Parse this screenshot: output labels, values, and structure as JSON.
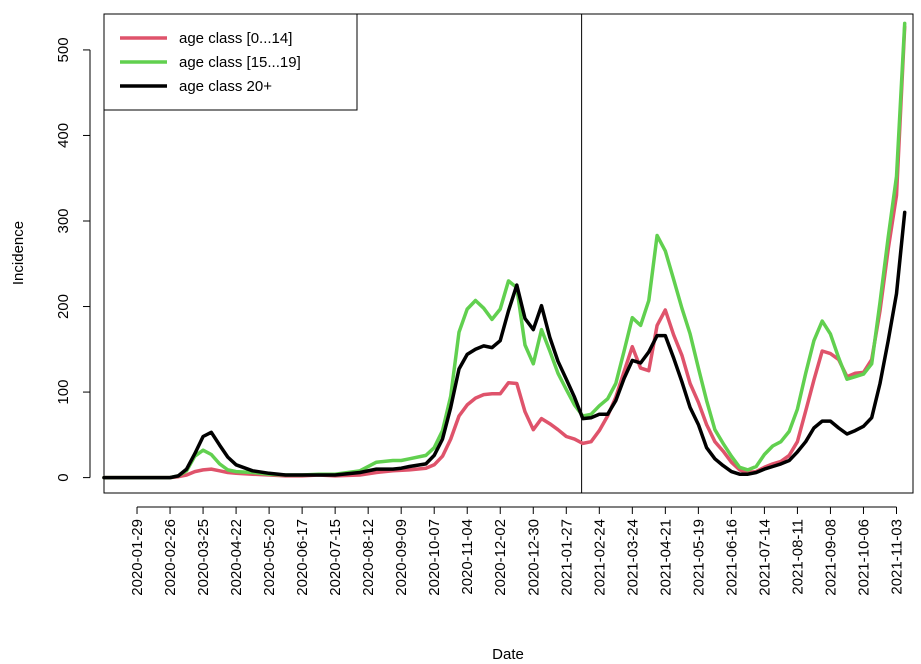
{
  "chart_data": {
    "type": "line",
    "title": "",
    "xlabel": "Date",
    "ylabel": "Incidence",
    "ylim": [
      -18,
      542
    ],
    "y_ticks": [
      0,
      100,
      200,
      300,
      400,
      500
    ],
    "x_start": "2020-01-01",
    "x_end": "2021-11-17",
    "x_tick_labels": [
      "2020-01-29",
      "2020-02-26",
      "2020-03-25",
      "2020-04-22",
      "2020-05-20",
      "2020-06-17",
      "2020-07-15",
      "2020-08-12",
      "2020-09-09",
      "2020-10-07",
      "2020-11-04",
      "2020-12-02",
      "2020-12-30",
      "2021-01-27",
      "2021-02-24",
      "2021-03-24",
      "2021-04-21",
      "2021-05-19",
      "2021-06-16",
      "2021-07-14",
      "2021-08-11",
      "2021-09-08",
      "2021-10-06",
      "2021-11-03"
    ],
    "vline_date": "2021-02-09",
    "grid": false,
    "legend_position": "top-left",
    "series": [
      {
        "name": "age class [0...14]",
        "color": "#DF536B",
        "points": [
          [
            "2020-01-01",
            0
          ],
          [
            "2020-01-15",
            0
          ],
          [
            "2020-02-05",
            0
          ],
          [
            "2020-02-26",
            0
          ],
          [
            "2020-03-04",
            1
          ],
          [
            "2020-03-11",
            3
          ],
          [
            "2020-03-18",
            7
          ],
          [
            "2020-03-25",
            9
          ],
          [
            "2020-04-01",
            10
          ],
          [
            "2020-04-08",
            8
          ],
          [
            "2020-04-15",
            6
          ],
          [
            "2020-04-22",
            5
          ],
          [
            "2020-05-06",
            4
          ],
          [
            "2020-05-20",
            3
          ],
          [
            "2020-06-03",
            2
          ],
          [
            "2020-06-17",
            2
          ],
          [
            "2020-07-01",
            3
          ],
          [
            "2020-07-15",
            2
          ],
          [
            "2020-08-05",
            3
          ],
          [
            "2020-08-19",
            6
          ],
          [
            "2020-09-02",
            8
          ],
          [
            "2020-09-16",
            9
          ],
          [
            "2020-09-30",
            11
          ],
          [
            "2020-10-07",
            15
          ],
          [
            "2020-10-14",
            25
          ],
          [
            "2020-10-21",
            45
          ],
          [
            "2020-10-28",
            72
          ],
          [
            "2020-11-04",
            85
          ],
          [
            "2020-11-11",
            93
          ],
          [
            "2020-11-18",
            97
          ],
          [
            "2020-11-25",
            98
          ],
          [
            "2020-12-02",
            98
          ],
          [
            "2020-12-09",
            111
          ],
          [
            "2020-12-16",
            110
          ],
          [
            "2020-12-23",
            77
          ],
          [
            "2020-12-30",
            56
          ],
          [
            "2021-01-06",
            69
          ],
          [
            "2021-01-13",
            63
          ],
          [
            "2021-01-20",
            56
          ],
          [
            "2021-01-27",
            48
          ],
          [
            "2021-02-03",
            45
          ],
          [
            "2021-02-10",
            40
          ],
          [
            "2021-02-17",
            42
          ],
          [
            "2021-02-24",
            55
          ],
          [
            "2021-03-03",
            72
          ],
          [
            "2021-03-10",
            94
          ],
          [
            "2021-03-17",
            124
          ],
          [
            "2021-03-24",
            153
          ],
          [
            "2021-03-31",
            128
          ],
          [
            "2021-04-07",
            125
          ],
          [
            "2021-04-14",
            178
          ],
          [
            "2021-04-21",
            196
          ],
          [
            "2021-04-28",
            167
          ],
          [
            "2021-05-05",
            143
          ],
          [
            "2021-05-12",
            110
          ],
          [
            "2021-05-19",
            88
          ],
          [
            "2021-05-26",
            62
          ],
          [
            "2021-06-02",
            42
          ],
          [
            "2021-06-09",
            31
          ],
          [
            "2021-06-16",
            18
          ],
          [
            "2021-06-23",
            9
          ],
          [
            "2021-06-30",
            6
          ],
          [
            "2021-07-07",
            7
          ],
          [
            "2021-07-14",
            12
          ],
          [
            "2021-07-21",
            16
          ],
          [
            "2021-07-28",
            19
          ],
          [
            "2021-08-04",
            26
          ],
          [
            "2021-08-11",
            42
          ],
          [
            "2021-08-18",
            78
          ],
          [
            "2021-08-25",
            114
          ],
          [
            "2021-09-01",
            148
          ],
          [
            "2021-09-08",
            145
          ],
          [
            "2021-09-15",
            138
          ],
          [
            "2021-09-22",
            118
          ],
          [
            "2021-09-29",
            122
          ],
          [
            "2021-10-06",
            123
          ],
          [
            "2021-10-13",
            138
          ],
          [
            "2021-10-20",
            195
          ],
          [
            "2021-10-27",
            267
          ],
          [
            "2021-11-03",
            330
          ],
          [
            "2021-11-10",
            527
          ]
        ]
      },
      {
        "name": "age class [15...19]",
        "color": "#61D04F",
        "points": [
          [
            "2020-01-01",
            0
          ],
          [
            "2020-01-15",
            0
          ],
          [
            "2020-02-05",
            0
          ],
          [
            "2020-02-26",
            0
          ],
          [
            "2020-03-04",
            2
          ],
          [
            "2020-03-11",
            8
          ],
          [
            "2020-03-18",
            25
          ],
          [
            "2020-03-25",
            32
          ],
          [
            "2020-04-01",
            27
          ],
          [
            "2020-04-08",
            16
          ],
          [
            "2020-04-15",
            9
          ],
          [
            "2020-04-22",
            7
          ],
          [
            "2020-05-06",
            6
          ],
          [
            "2020-05-20",
            4
          ],
          [
            "2020-06-03",
            3
          ],
          [
            "2020-06-17",
            3
          ],
          [
            "2020-07-01",
            4
          ],
          [
            "2020-07-15",
            4
          ],
          [
            "2020-08-05",
            8
          ],
          [
            "2020-08-19",
            18
          ],
          [
            "2020-09-02",
            20
          ],
          [
            "2020-09-09",
            20
          ],
          [
            "2020-09-16",
            22
          ],
          [
            "2020-09-30",
            26
          ],
          [
            "2020-10-07",
            35
          ],
          [
            "2020-10-14",
            55
          ],
          [
            "2020-10-21",
            95
          ],
          [
            "2020-10-28",
            170
          ],
          [
            "2020-11-04",
            197
          ],
          [
            "2020-11-11",
            207
          ],
          [
            "2020-11-18",
            198
          ],
          [
            "2020-11-25",
            185
          ],
          [
            "2020-12-02",
            197
          ],
          [
            "2020-12-09",
            230
          ],
          [
            "2020-12-16",
            222
          ],
          [
            "2020-12-23",
            155
          ],
          [
            "2020-12-30",
            133
          ],
          [
            "2021-01-06",
            173
          ],
          [
            "2021-01-13",
            148
          ],
          [
            "2021-01-20",
            122
          ],
          [
            "2021-01-27",
            103
          ],
          [
            "2021-02-03",
            85
          ],
          [
            "2021-02-10",
            72
          ],
          [
            "2021-02-17",
            74
          ],
          [
            "2021-02-24",
            84
          ],
          [
            "2021-03-03",
            92
          ],
          [
            "2021-03-10",
            110
          ],
          [
            "2021-03-17",
            148
          ],
          [
            "2021-03-24",
            187
          ],
          [
            "2021-03-31",
            178
          ],
          [
            "2021-04-07",
            207
          ],
          [
            "2021-04-14",
            283
          ],
          [
            "2021-04-21",
            265
          ],
          [
            "2021-04-28",
            232
          ],
          [
            "2021-05-05",
            198
          ],
          [
            "2021-05-12",
            168
          ],
          [
            "2021-05-19",
            128
          ],
          [
            "2021-05-26",
            90
          ],
          [
            "2021-06-02",
            56
          ],
          [
            "2021-06-09",
            40
          ],
          [
            "2021-06-16",
            25
          ],
          [
            "2021-06-23",
            12
          ],
          [
            "2021-06-30",
            9
          ],
          [
            "2021-07-07",
            13
          ],
          [
            "2021-07-14",
            27
          ],
          [
            "2021-07-21",
            37
          ],
          [
            "2021-07-28",
            42
          ],
          [
            "2021-08-04",
            54
          ],
          [
            "2021-08-11",
            80
          ],
          [
            "2021-08-18",
            122
          ],
          [
            "2021-08-25",
            160
          ],
          [
            "2021-09-01",
            183
          ],
          [
            "2021-09-08",
            168
          ],
          [
            "2021-09-15",
            140
          ],
          [
            "2021-09-22",
            115
          ],
          [
            "2021-09-29",
            118
          ],
          [
            "2021-10-06",
            121
          ],
          [
            "2021-10-13",
            133
          ],
          [
            "2021-10-20",
            205
          ],
          [
            "2021-10-27",
            281
          ],
          [
            "2021-11-03",
            352
          ],
          [
            "2021-11-10",
            531
          ]
        ]
      },
      {
        "name": "age class 20+",
        "color": "#000000",
        "points": [
          [
            "2020-01-01",
            0
          ],
          [
            "2020-01-15",
            0
          ],
          [
            "2020-02-05",
            0
          ],
          [
            "2020-02-26",
            0
          ],
          [
            "2020-03-04",
            2
          ],
          [
            "2020-03-11",
            10
          ],
          [
            "2020-03-18",
            28
          ],
          [
            "2020-03-25",
            48
          ],
          [
            "2020-04-01",
            53
          ],
          [
            "2020-04-08",
            38
          ],
          [
            "2020-04-15",
            24
          ],
          [
            "2020-04-22",
            15
          ],
          [
            "2020-05-06",
            8
          ],
          [
            "2020-05-20",
            5
          ],
          [
            "2020-06-03",
            3
          ],
          [
            "2020-06-17",
            3
          ],
          [
            "2020-07-01",
            3
          ],
          [
            "2020-07-15",
            3
          ],
          [
            "2020-08-05",
            6
          ],
          [
            "2020-08-19",
            10
          ],
          [
            "2020-09-02",
            10
          ],
          [
            "2020-09-09",
            11
          ],
          [
            "2020-09-16",
            13
          ],
          [
            "2020-09-30",
            16
          ],
          [
            "2020-10-07",
            26
          ],
          [
            "2020-10-14",
            45
          ],
          [
            "2020-10-21",
            82
          ],
          [
            "2020-10-28",
            127
          ],
          [
            "2020-11-04",
            144
          ],
          [
            "2020-11-11",
            150
          ],
          [
            "2020-11-18",
            154
          ],
          [
            "2020-11-25",
            152
          ],
          [
            "2020-12-02",
            160
          ],
          [
            "2020-12-09",
            195
          ],
          [
            "2020-12-16",
            225
          ],
          [
            "2020-12-23",
            186
          ],
          [
            "2020-12-30",
            173
          ],
          [
            "2021-01-06",
            201
          ],
          [
            "2021-01-13",
            164
          ],
          [
            "2021-01-20",
            136
          ],
          [
            "2021-01-27",
            115
          ],
          [
            "2021-02-03",
            94
          ],
          [
            "2021-02-10",
            69
          ],
          [
            "2021-02-17",
            70
          ],
          [
            "2021-02-24",
            74
          ],
          [
            "2021-03-03",
            74
          ],
          [
            "2021-03-10",
            90
          ],
          [
            "2021-03-17",
            116
          ],
          [
            "2021-03-24",
            137
          ],
          [
            "2021-03-31",
            134
          ],
          [
            "2021-04-07",
            147
          ],
          [
            "2021-04-14",
            166
          ],
          [
            "2021-04-21",
            166
          ],
          [
            "2021-04-28",
            140
          ],
          [
            "2021-05-05",
            112
          ],
          [
            "2021-05-12",
            82
          ],
          [
            "2021-05-19",
            62
          ],
          [
            "2021-05-26",
            35
          ],
          [
            "2021-06-02",
            22
          ],
          [
            "2021-06-09",
            14
          ],
          [
            "2021-06-16",
            7
          ],
          [
            "2021-06-23",
            4
          ],
          [
            "2021-06-30",
            4
          ],
          [
            "2021-07-07",
            6
          ],
          [
            "2021-07-14",
            10
          ],
          [
            "2021-07-21",
            13
          ],
          [
            "2021-07-28",
            16
          ],
          [
            "2021-08-04",
            20
          ],
          [
            "2021-08-11",
            30
          ],
          [
            "2021-08-18",
            42
          ],
          [
            "2021-08-25",
            58
          ],
          [
            "2021-09-01",
            66
          ],
          [
            "2021-09-08",
            66
          ],
          [
            "2021-09-15",
            58
          ],
          [
            "2021-09-22",
            51
          ],
          [
            "2021-09-29",
            55
          ],
          [
            "2021-10-06",
            60
          ],
          [
            "2021-10-13",
            70
          ],
          [
            "2021-10-20",
            110
          ],
          [
            "2021-10-27",
            160
          ],
          [
            "2021-11-03",
            215
          ],
          [
            "2021-11-10",
            310
          ]
        ]
      }
    ]
  }
}
